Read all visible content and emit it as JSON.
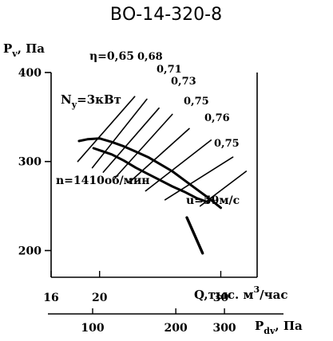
{
  "chart_data": {
    "type": "line",
    "title": "ВО-14-320-8",
    "y_axis": {
      "label": "P",
      "label_sub": "v",
      "unit": ", Па",
      "ticks": [
        200,
        300,
        400
      ],
      "range": [
        170,
        400
      ]
    },
    "x_axis": {
      "label": "Q,тыс. м",
      "label_sup": "3",
      "unit": "/час",
      "ticks": [
        16,
        20,
        30
      ],
      "range": [
        16,
        33
      ]
    },
    "pdv_axis": {
      "label": "P",
      "label_sub": "dv",
      "unit": ", Па",
      "ticks": [
        100,
        200,
        300
      ]
    },
    "series": [
      {
        "kind": "pressure-curve",
        "x": [
          18.3,
          19.0,
          20.0,
          21.0,
          22.0,
          23.0,
          24.0,
          25.0,
          26.0,
          27.0,
          28.0,
          29.0,
          30.0
        ],
        "y": [
          323,
          325,
          326,
          322,
          317,
          311,
          305,
          297,
          289,
          279,
          269,
          259,
          248
        ]
      },
      {
        "kind": "power-curve",
        "x": [
          19.5,
          21.0,
          22.0,
          23.0,
          24.0,
          25.0,
          26.0,
          27.0,
          28.0,
          29.0
        ],
        "y": [
          315,
          308,
          301,
          293,
          286,
          279,
          272,
          266,
          259,
          254
        ]
      },
      {
        "kind": "velocity-line",
        "x": [
          27.2,
          28.5
        ],
        "y": [
          237,
          197
        ]
      }
    ],
    "efficiency_lines": [
      {
        "x": [
          18.2,
          22.9
        ],
        "y": [
          300,
          373
        ]
      },
      {
        "x": [
          19.4,
          23.9
        ],
        "y": [
          293,
          370
        ]
      },
      {
        "x": [
          20.3,
          24.9
        ],
        "y": [
          288,
          360
        ]
      },
      {
        "x": [
          21.3,
          26.0
        ],
        "y": [
          282,
          353
        ]
      },
      {
        "x": [
          22.4,
          27.4
        ],
        "y": [
          276,
          337
        ]
      },
      {
        "x": [
          23.8,
          29.2
        ],
        "y": [
          267,
          324
        ]
      },
      {
        "x": [
          25.4,
          31.0
        ],
        "y": [
          257,
          305
        ]
      },
      {
        "x": [
          28.3,
          32.1
        ],
        "y": [
          250,
          289
        ]
      }
    ],
    "annotations": {
      "eta": "η=0,65",
      "eta_values": [
        "0,68",
        "0,71",
        "0,73",
        "0,75",
        "0,76",
        "0,75"
      ],
      "power": "N",
      "power_sub": "y",
      "power_value": "=3кВт",
      "speed": "n=1410об/мин",
      "velocity": "u=59м/с"
    },
    "grid": false
  }
}
